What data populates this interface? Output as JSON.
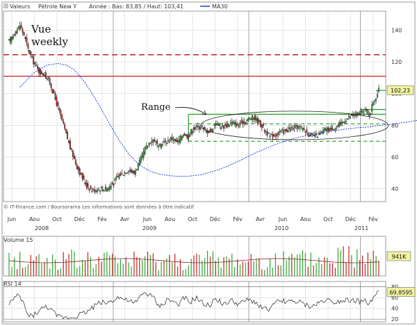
{
  "header": {
    "prefix": "Valeurs",
    "name": "Pétrole New Y",
    "stats": "Année : Bas: 83,85 / Haut: 103,41",
    "ma_label": "MA30"
  },
  "annotations": {
    "view_line1": "Vue",
    "view_line2": "weekly",
    "range": "Range"
  },
  "footer_note": "© IT-Finance.com / Boursorama Les informations sont données à titre indicatif",
  "colors": {
    "up": "#2ea32e",
    "down": "#c42121",
    "ma": "#1f3fd8",
    "resistance": "#c42121",
    "range_lines": "#2ea32e",
    "grid": "#d6d6d6"
  },
  "chart_data": [
    {
      "type": "candlestick",
      "title": "Pétrole New Y",
      "ylim": [
        32,
        152
      ],
      "yticks": [
        "40",
        "60",
        "80",
        "100",
        "120",
        "140"
      ],
      "last_value_label": "102,23",
      "x_month_labels": [
        "Jun",
        "Aou",
        "Oct",
        "Déc",
        "Fév",
        "Avr",
        "Jun",
        "Aou",
        "Oct",
        "Déc",
        "Fév",
        "Avr",
        "Jun",
        "Aou",
        "Oct",
        "Déc",
        "Fév"
      ],
      "x_year_labels": [
        "2008",
        "2009",
        "2010",
        "2011"
      ],
      "grid": true,
      "series": [
        {
          "name": "MA30",
          "anchors": [
            [
              8,
              104
            ],
            [
              18,
              113
            ],
            [
              28,
              118
            ],
            [
              36,
              119
            ],
            [
              42,
              118
            ],
            [
              48,
              115
            ],
            [
              56,
              107
            ],
            [
              64,
              96
            ],
            [
              72,
              84
            ],
            [
              80,
              72
            ],
            [
              88,
              62
            ],
            [
              96,
              55
            ],
            [
              104,
              51
            ],
            [
              112,
              49
            ],
            [
              122,
              48
            ],
            [
              132,
              48
            ],
            [
              142,
              49
            ],
            [
              154,
              52
            ],
            [
              168,
              57
            ],
            [
              182,
              63
            ],
            [
              196,
              68
            ],
            [
              210,
              72
            ],
            [
              222,
              74
            ],
            [
              234,
              76
            ],
            [
              246,
              77.5
            ],
            [
              256,
              78.5
            ],
            [
              264,
              79
            ],
            [
              272,
              80
            ],
            [
              280,
              80.5
            ],
            [
              288,
              81.5
            ],
            [
              296,
              82.5
            ],
            [
              302,
              83.5
            ]
          ]
        }
      ],
      "price_anchors": [
        [
          0,
          133
        ],
        [
          4,
          138
        ],
        [
          8,
          143
        ],
        [
          11,
          137
        ],
        [
          14,
          128
        ],
        [
          18,
          120
        ],
        [
          22,
          114
        ],
        [
          26,
          112
        ],
        [
          30,
          107
        ],
        [
          35,
          94
        ],
        [
          40,
          80
        ],
        [
          45,
          66
        ],
        [
          50,
          54
        ],
        [
          55,
          45
        ],
        [
          58,
          41
        ],
        [
          62,
          39
        ],
        [
          67,
          40
        ],
        [
          72,
          40
        ],
        [
          76,
          43
        ],
        [
          80,
          48
        ],
        [
          84,
          50
        ],
        [
          88,
          52
        ],
        [
          92,
          50
        ],
        [
          96,
          57
        ],
        [
          100,
          65
        ],
        [
          104,
          70
        ],
        [
          107,
          71
        ],
        [
          110,
          66
        ],
        [
          113,
          69
        ],
        [
          116,
          70
        ],
        [
          120,
          72
        ],
        [
          124,
          69
        ],
        [
          128,
          75
        ],
        [
          132,
          73
        ],
        [
          135,
          78
        ],
        [
          139,
          79
        ],
        [
          142,
          79
        ],
        [
          145,
          76
        ],
        [
          149,
          77
        ],
        [
          152,
          82
        ],
        [
          156,
          79
        ],
        [
          160,
          80
        ],
        [
          164,
          82
        ],
        [
          168,
          80
        ],
        [
          172,
          82
        ],
        [
          176,
          84
        ],
        [
          180,
          85
        ],
        [
          184,
          82
        ],
        [
          188,
          77
        ],
        [
          192,
          73
        ],
        [
          196,
          74
        ],
        [
          200,
          76
        ],
        [
          204,
          77
        ],
        [
          208,
          78
        ],
        [
          212,
          79
        ],
        [
          216,
          78
        ],
        [
          220,
          75
        ],
        [
          224,
          73
        ],
        [
          228,
          74
        ],
        [
          232,
          77
        ],
        [
          236,
          78
        ],
        [
          240,
          79
        ],
        [
          244,
          81
        ],
        [
          248,
          84
        ],
        [
          252,
          86
        ],
        [
          256,
          87
        ],
        [
          260,
          88
        ],
        [
          262,
          90
        ],
        [
          264,
          87
        ],
        [
          266,
          89
        ],
        [
          268,
          95
        ],
        [
          270,
          98
        ],
        [
          272,
          102
        ]
      ],
      "levels": [
        {
          "y": 124.5,
          "style": "dashed",
          "label": ""
        },
        {
          "y": 111,
          "style": "solid",
          "label": ""
        },
        {
          "y": 102,
          "style": "solid",
          "label": ""
        },
        {
          "y": 90,
          "style": "solid",
          "label": ""
        },
        {
          "y": 87,
          "style": "solid",
          "label": ""
        },
        {
          "y": 81,
          "style": "dashed",
          "label": ""
        },
        {
          "y": 70,
          "style": "solid",
          "label": ""
        }
      ]
    },
    {
      "type": "bar",
      "title": "Volume 15",
      "last_value_label": "941K"
    },
    {
      "type": "line",
      "title": "RSI 14",
      "last_value_label": "69,8595",
      "yticks": [
        "20",
        "40",
        "60",
        "80"
      ]
    }
  ]
}
